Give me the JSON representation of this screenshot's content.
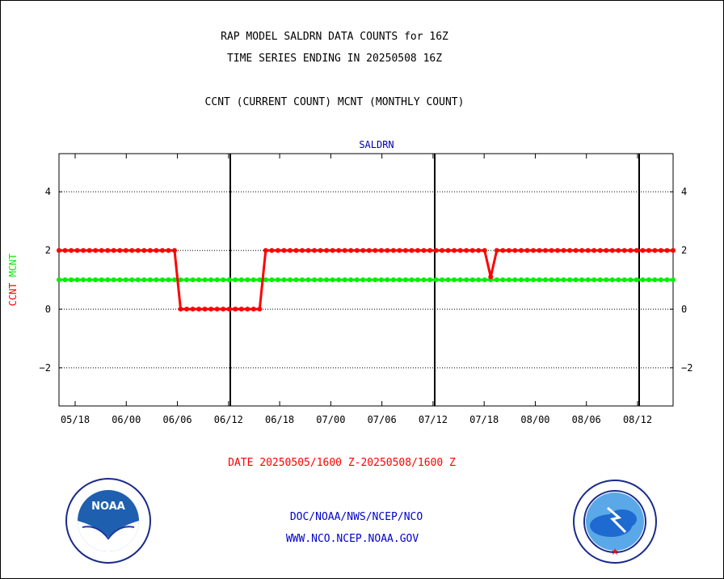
{
  "header": {
    "title_line1": "RAP MODEL SALDRN DATA COUNTS for 16Z",
    "title_line2": "TIME SERIES ENDING IN 20250508 16Z",
    "subtitle": "CCNT (CURRENT COUNT) MCNT (MONTHLY COUNT)"
  },
  "footer": {
    "date_range": "DATE 20250505/1600 Z-20250508/1600 Z",
    "org_path": "DOC/NOAA/NWS/NCEP/NCO",
    "website": "WWW.NCO.NCEP.NOAA.GOV"
  },
  "logos": {
    "left": {
      "icon": "noaa-logo-icon",
      "text": "NOAA"
    },
    "right": {
      "icon": "nws-logo-icon"
    }
  },
  "colors": {
    "ccnt": "#ff0000",
    "mcnt": "#00ee00",
    "title": "#0000aa",
    "date": "#ff0000",
    "footer": "#0000cc"
  },
  "chart_data": {
    "type": "line",
    "title": "SALDRN",
    "ylabel_left": [
      "CCNT",
      "MCNT"
    ],
    "ylim": [
      -3.3,
      5.3
    ],
    "yticks": [
      4,
      2,
      0,
      -2
    ],
    "ytick_labels": [
      "4",
      "2",
      "0",
      "−2"
    ],
    "xticks": [
      "05/18",
      "06/00",
      "06/06",
      "06/12",
      "06/18",
      "07/00",
      "07/06",
      "07/12",
      "07/18",
      "08/00",
      "08/06",
      "08/12"
    ],
    "major_vlines_after": [
      "06/12",
      "07/12",
      "08/12"
    ],
    "grid": "horizontal dotted",
    "series": [
      {
        "name": "CCNT",
        "color": "#ff0000",
        "values": [
          2,
          2,
          2,
          2,
          2,
          2,
          2,
          2,
          2,
          2,
          2,
          2,
          2,
          2,
          2,
          2,
          2,
          2,
          2,
          2,
          0,
          0,
          0,
          0,
          0,
          0,
          0,
          0,
          0,
          0,
          0,
          0,
          0,
          0,
          2,
          2,
          2,
          2,
          2,
          2,
          2,
          2,
          2,
          2,
          2,
          2,
          2,
          2,
          2,
          2,
          2,
          2,
          2,
          2,
          2,
          2,
          2,
          2,
          2,
          2,
          2,
          2,
          2,
          2,
          2,
          2,
          2,
          2,
          2,
          2,
          2,
          1.1,
          2,
          2,
          2,
          2,
          2,
          2,
          2,
          2,
          2,
          2,
          2,
          2,
          2,
          2,
          2,
          2,
          2,
          2,
          2,
          2,
          2,
          2,
          2,
          2,
          2,
          2,
          2,
          2,
          2,
          2
        ]
      },
      {
        "name": "MCNT",
        "color": "#00ee00",
        "values": [
          1,
          1,
          1,
          1,
          1,
          1,
          1,
          1,
          1,
          1,
          1,
          1,
          1,
          1,
          1,
          1,
          1,
          1,
          1,
          1,
          1,
          1,
          1,
          1,
          1,
          1,
          1,
          1,
          1,
          1,
          1,
          1,
          1,
          1,
          1,
          1,
          1,
          1,
          1,
          1,
          1,
          1,
          1,
          1,
          1,
          1,
          1,
          1,
          1,
          1,
          1,
          1,
          1,
          1,
          1,
          1,
          1,
          1,
          1,
          1,
          1,
          1,
          1,
          1,
          1,
          1,
          1,
          1,
          1,
          1,
          1,
          1,
          1,
          1,
          1,
          1,
          1,
          1,
          1,
          1,
          1,
          1,
          1,
          1,
          1,
          1,
          1,
          1,
          1,
          1,
          1,
          1,
          1,
          1,
          1,
          1,
          1,
          1,
          1,
          1,
          1,
          1
        ]
      }
    ]
  }
}
